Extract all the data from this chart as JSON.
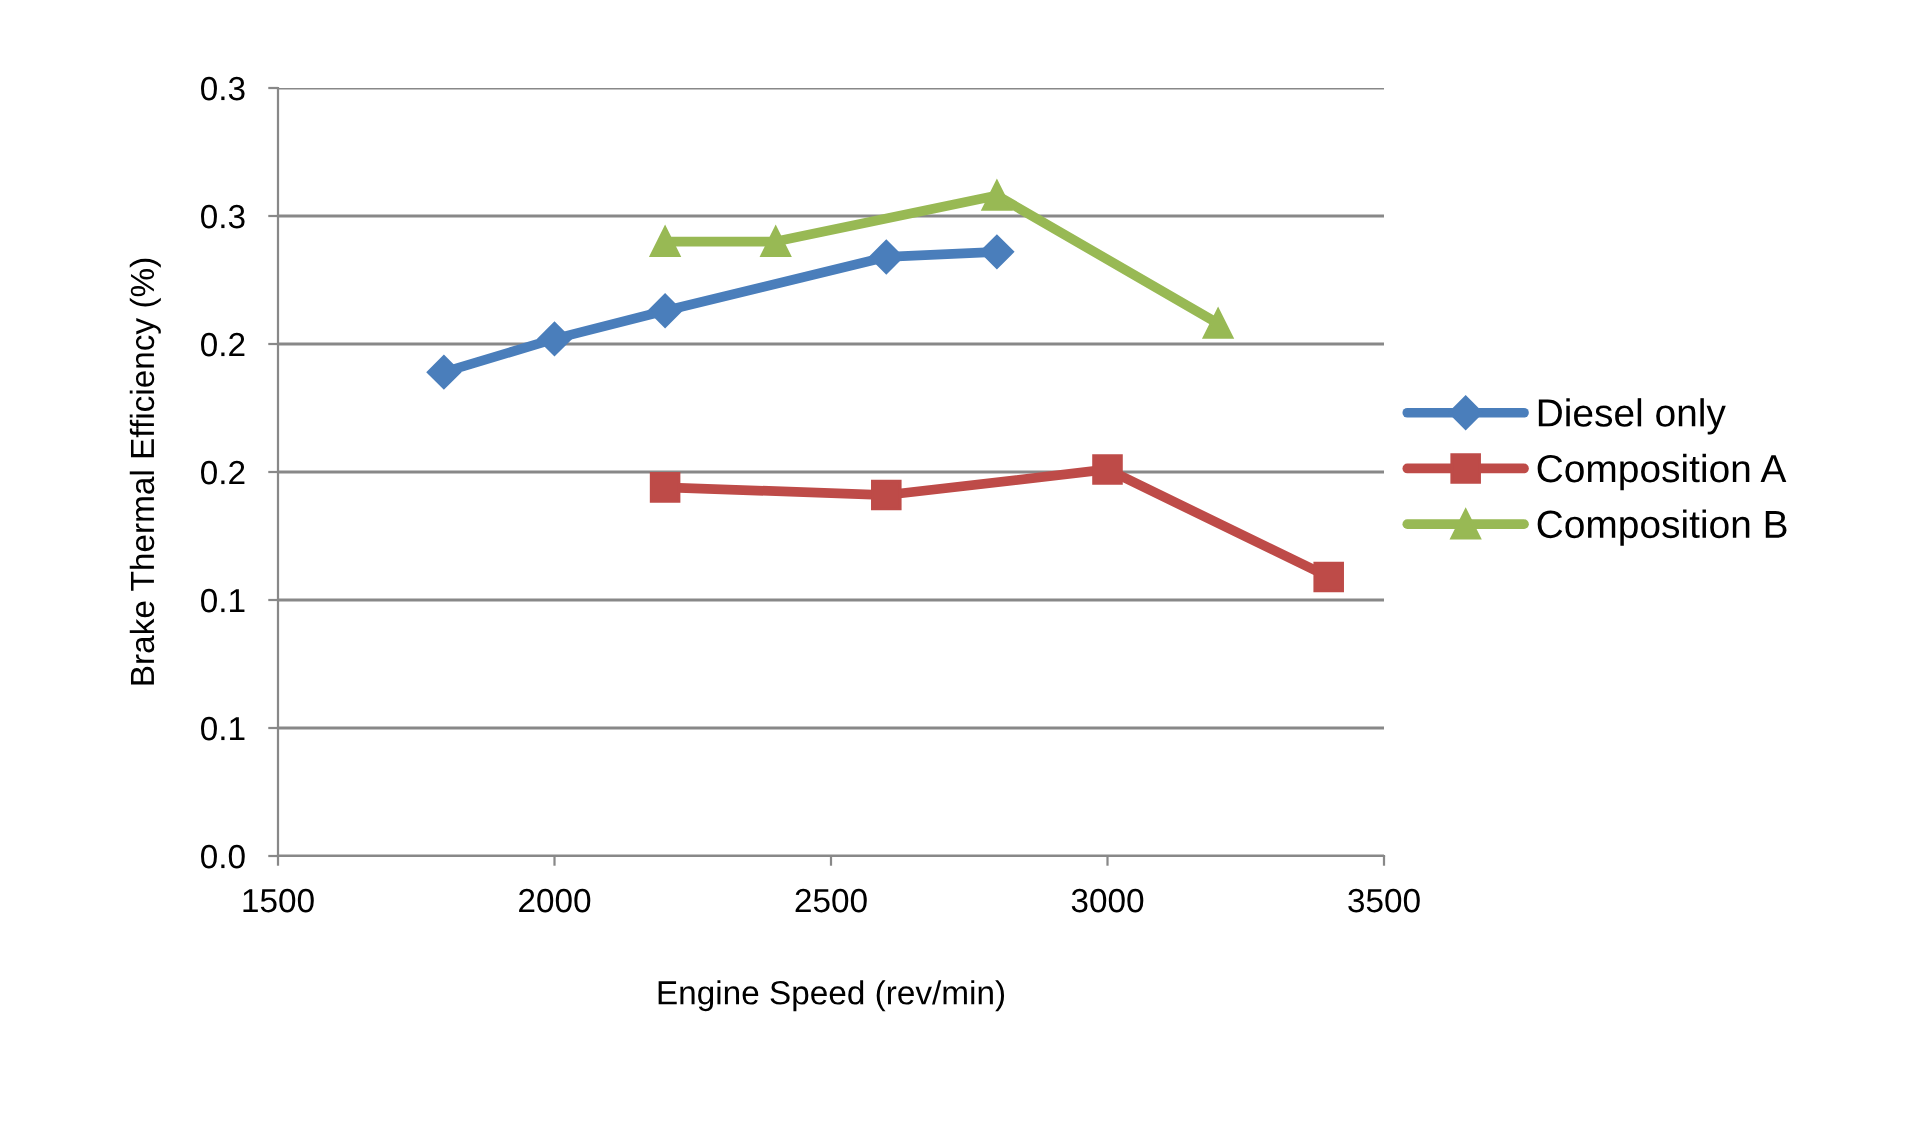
{
  "chart_data": {
    "type": "line",
    "xlabel": "Engine Speed (rev/min)",
    "ylabel": "Brake Thermal Efficiency (%)",
    "xlim": [
      1500,
      3500
    ],
    "xticks": [
      1500,
      2000,
      2500,
      3000,
      3500
    ],
    "ylim": [
      0,
      0.3
    ],
    "yticks": [
      {
        "value": 0,
        "label": "0.0"
      },
      {
        "value": 0.05,
        "label": "0.1"
      },
      {
        "value": 0.1,
        "label": "0.1"
      },
      {
        "value": 0.15,
        "label": "0.2"
      },
      {
        "value": 0.2,
        "label": "0.2"
      },
      {
        "value": 0.25,
        "label": "0.3"
      },
      {
        "value": 0.3,
        "label": "0.3"
      }
    ],
    "grid": "y",
    "legend": "right",
    "series": [
      {
        "name": "Diesel only",
        "color": "#4a7ebb",
        "marker": "diamond",
        "x": [
          1800,
          2000,
          2200,
          2600,
          2800
        ],
        "values": [
          0.189,
          0.202,
          0.213,
          0.234,
          0.236
        ]
      },
      {
        "name": "Composition A",
        "color": "#be4b48",
        "marker": "square",
        "x": [
          2200,
          2600,
          3000,
          3400
        ],
        "values": [
          0.144,
          0.141,
          0.151,
          0.109
        ]
      },
      {
        "name": "Composition B",
        "color": "#98b954",
        "marker": "triangle",
        "x": [
          2200,
          2400,
          2800,
          3200
        ],
        "values": [
          0.24,
          0.24,
          0.258,
          0.208
        ]
      }
    ]
  }
}
